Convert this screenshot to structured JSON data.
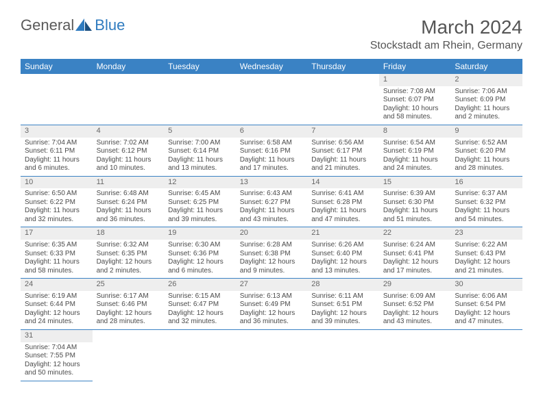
{
  "logo": {
    "text1": "General",
    "text2": "Blue"
  },
  "title": "March 2024",
  "location": "Stockstadt am Rhein, Germany",
  "dayHeaders": [
    "Sunday",
    "Monday",
    "Tuesday",
    "Wednesday",
    "Thursday",
    "Friday",
    "Saturday"
  ],
  "colors": {
    "header_bg": "#3a82c4",
    "header_text": "#ffffff",
    "daynum_bg": "#eeeeee",
    "body_text": "#4a4a4a",
    "border": "#3a82c4"
  },
  "weeks": [
    [
      null,
      null,
      null,
      null,
      null,
      {
        "n": "1",
        "sr": "Sunrise: 7:08 AM",
        "ss": "Sunset: 6:07 PM",
        "dl1": "Daylight: 10 hours",
        "dl2": "and 58 minutes."
      },
      {
        "n": "2",
        "sr": "Sunrise: 7:06 AM",
        "ss": "Sunset: 6:09 PM",
        "dl1": "Daylight: 11 hours",
        "dl2": "and 2 minutes."
      }
    ],
    [
      {
        "n": "3",
        "sr": "Sunrise: 7:04 AM",
        "ss": "Sunset: 6:11 PM",
        "dl1": "Daylight: 11 hours",
        "dl2": "and 6 minutes."
      },
      {
        "n": "4",
        "sr": "Sunrise: 7:02 AM",
        "ss": "Sunset: 6:12 PM",
        "dl1": "Daylight: 11 hours",
        "dl2": "and 10 minutes."
      },
      {
        "n": "5",
        "sr": "Sunrise: 7:00 AM",
        "ss": "Sunset: 6:14 PM",
        "dl1": "Daylight: 11 hours",
        "dl2": "and 13 minutes."
      },
      {
        "n": "6",
        "sr": "Sunrise: 6:58 AM",
        "ss": "Sunset: 6:16 PM",
        "dl1": "Daylight: 11 hours",
        "dl2": "and 17 minutes."
      },
      {
        "n": "7",
        "sr": "Sunrise: 6:56 AM",
        "ss": "Sunset: 6:17 PM",
        "dl1": "Daylight: 11 hours",
        "dl2": "and 21 minutes."
      },
      {
        "n": "8",
        "sr": "Sunrise: 6:54 AM",
        "ss": "Sunset: 6:19 PM",
        "dl1": "Daylight: 11 hours",
        "dl2": "and 24 minutes."
      },
      {
        "n": "9",
        "sr": "Sunrise: 6:52 AM",
        "ss": "Sunset: 6:20 PM",
        "dl1": "Daylight: 11 hours",
        "dl2": "and 28 minutes."
      }
    ],
    [
      {
        "n": "10",
        "sr": "Sunrise: 6:50 AM",
        "ss": "Sunset: 6:22 PM",
        "dl1": "Daylight: 11 hours",
        "dl2": "and 32 minutes."
      },
      {
        "n": "11",
        "sr": "Sunrise: 6:48 AM",
        "ss": "Sunset: 6:24 PM",
        "dl1": "Daylight: 11 hours",
        "dl2": "and 36 minutes."
      },
      {
        "n": "12",
        "sr": "Sunrise: 6:45 AM",
        "ss": "Sunset: 6:25 PM",
        "dl1": "Daylight: 11 hours",
        "dl2": "and 39 minutes."
      },
      {
        "n": "13",
        "sr": "Sunrise: 6:43 AM",
        "ss": "Sunset: 6:27 PM",
        "dl1": "Daylight: 11 hours",
        "dl2": "and 43 minutes."
      },
      {
        "n": "14",
        "sr": "Sunrise: 6:41 AM",
        "ss": "Sunset: 6:28 PM",
        "dl1": "Daylight: 11 hours",
        "dl2": "and 47 minutes."
      },
      {
        "n": "15",
        "sr": "Sunrise: 6:39 AM",
        "ss": "Sunset: 6:30 PM",
        "dl1": "Daylight: 11 hours",
        "dl2": "and 51 minutes."
      },
      {
        "n": "16",
        "sr": "Sunrise: 6:37 AM",
        "ss": "Sunset: 6:32 PM",
        "dl1": "Daylight: 11 hours",
        "dl2": "and 54 minutes."
      }
    ],
    [
      {
        "n": "17",
        "sr": "Sunrise: 6:35 AM",
        "ss": "Sunset: 6:33 PM",
        "dl1": "Daylight: 11 hours",
        "dl2": "and 58 minutes."
      },
      {
        "n": "18",
        "sr": "Sunrise: 6:32 AM",
        "ss": "Sunset: 6:35 PM",
        "dl1": "Daylight: 12 hours",
        "dl2": "and 2 minutes."
      },
      {
        "n": "19",
        "sr": "Sunrise: 6:30 AM",
        "ss": "Sunset: 6:36 PM",
        "dl1": "Daylight: 12 hours",
        "dl2": "and 6 minutes."
      },
      {
        "n": "20",
        "sr": "Sunrise: 6:28 AM",
        "ss": "Sunset: 6:38 PM",
        "dl1": "Daylight: 12 hours",
        "dl2": "and 9 minutes."
      },
      {
        "n": "21",
        "sr": "Sunrise: 6:26 AM",
        "ss": "Sunset: 6:40 PM",
        "dl1": "Daylight: 12 hours",
        "dl2": "and 13 minutes."
      },
      {
        "n": "22",
        "sr": "Sunrise: 6:24 AM",
        "ss": "Sunset: 6:41 PM",
        "dl1": "Daylight: 12 hours",
        "dl2": "and 17 minutes."
      },
      {
        "n": "23",
        "sr": "Sunrise: 6:22 AM",
        "ss": "Sunset: 6:43 PM",
        "dl1": "Daylight: 12 hours",
        "dl2": "and 21 minutes."
      }
    ],
    [
      {
        "n": "24",
        "sr": "Sunrise: 6:19 AM",
        "ss": "Sunset: 6:44 PM",
        "dl1": "Daylight: 12 hours",
        "dl2": "and 24 minutes."
      },
      {
        "n": "25",
        "sr": "Sunrise: 6:17 AM",
        "ss": "Sunset: 6:46 PM",
        "dl1": "Daylight: 12 hours",
        "dl2": "and 28 minutes."
      },
      {
        "n": "26",
        "sr": "Sunrise: 6:15 AM",
        "ss": "Sunset: 6:47 PM",
        "dl1": "Daylight: 12 hours",
        "dl2": "and 32 minutes."
      },
      {
        "n": "27",
        "sr": "Sunrise: 6:13 AM",
        "ss": "Sunset: 6:49 PM",
        "dl1": "Daylight: 12 hours",
        "dl2": "and 36 minutes."
      },
      {
        "n": "28",
        "sr": "Sunrise: 6:11 AM",
        "ss": "Sunset: 6:51 PM",
        "dl1": "Daylight: 12 hours",
        "dl2": "and 39 minutes."
      },
      {
        "n": "29",
        "sr": "Sunrise: 6:09 AM",
        "ss": "Sunset: 6:52 PM",
        "dl1": "Daylight: 12 hours",
        "dl2": "and 43 minutes."
      },
      {
        "n": "30",
        "sr": "Sunrise: 6:06 AM",
        "ss": "Sunset: 6:54 PM",
        "dl1": "Daylight: 12 hours",
        "dl2": "and 47 minutes."
      }
    ],
    [
      {
        "n": "31",
        "sr": "Sunrise: 7:04 AM",
        "ss": "Sunset: 7:55 PM",
        "dl1": "Daylight: 12 hours",
        "dl2": "and 50 minutes."
      },
      null,
      null,
      null,
      null,
      null,
      null
    ]
  ]
}
